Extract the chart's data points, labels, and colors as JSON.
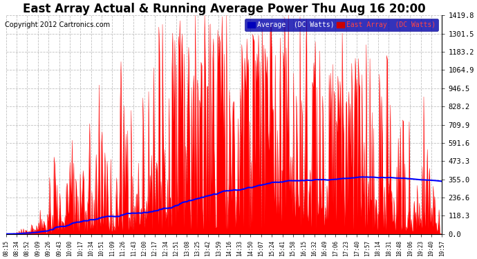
{
  "title": "East Array Actual & Running Average Power Thu Aug 16 20:00",
  "copyright": "Copyright 2012 Cartronics.com",
  "ylabel_right_ticks": [
    0.0,
    118.3,
    236.6,
    355.0,
    473.3,
    591.6,
    709.9,
    828.2,
    946.5,
    1064.9,
    1183.2,
    1301.5,
    1419.8
  ],
  "ylim": [
    0,
    1419.8
  ],
  "legend_labels": [
    "Average  (DC Watts)",
    "East Array  (DC Watts)"
  ],
  "legend_colors": [
    "#0000cc",
    "#cc0000"
  ],
  "background_color": "#ffffff",
  "plot_bg_color": "#ffffff",
  "grid_color": "#b0b0b0",
  "title_fontsize": 12,
  "copyright_fontsize": 7,
  "x_tick_labels": [
    "08:15",
    "08:34",
    "08:52",
    "09:09",
    "09:26",
    "09:43",
    "10:00",
    "10:17",
    "10:34",
    "10:51",
    "11:09",
    "11:26",
    "11:43",
    "12:00",
    "12:17",
    "12:34",
    "12:51",
    "13:08",
    "13:25",
    "13:42",
    "13:59",
    "14:16",
    "14:33",
    "14:50",
    "15:07",
    "15:24",
    "15:41",
    "15:58",
    "16:15",
    "16:32",
    "16:49",
    "17:06",
    "17:23",
    "17:40",
    "17:57",
    "18:14",
    "18:31",
    "18:48",
    "19:06",
    "19:23",
    "19:40",
    "19:57"
  ]
}
